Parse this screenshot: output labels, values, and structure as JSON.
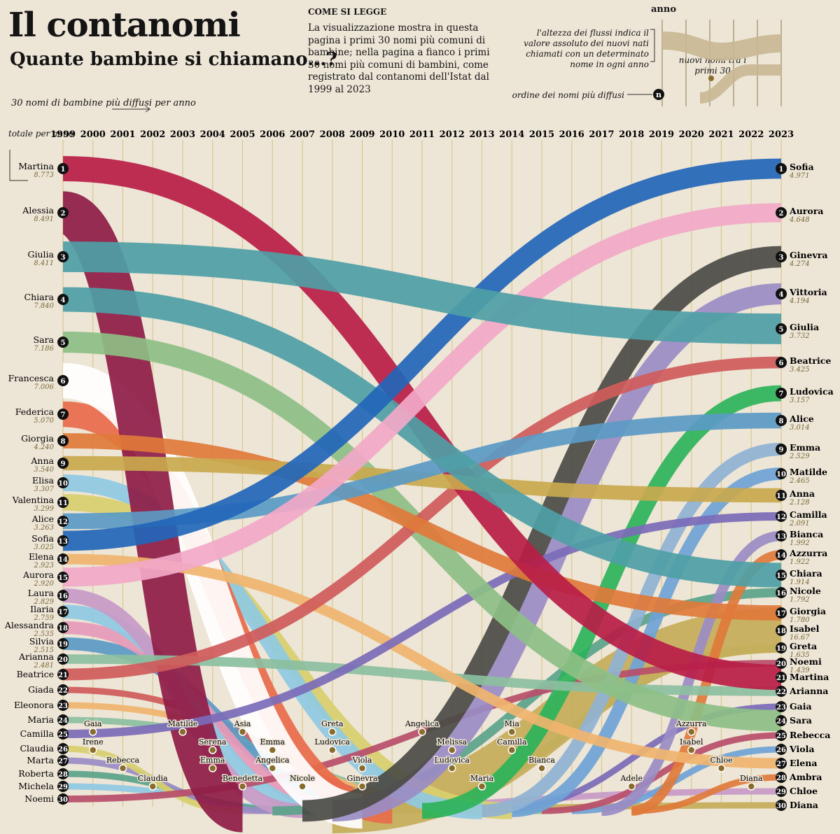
{
  "header": {
    "title": "Il contanomi",
    "subtitle": "Quante bambine si chiamano...?"
  },
  "how_to_read": {
    "heading": "COME SI LEGGE",
    "text": "La visualizzazione mostra in questa pagina i primi 30 nomi più comuni di bambine; nella pagina a fianco i primi 30 nomi più comuni di bambini, come registrato dal contanomi dell'Istat dal 1999 al 2023"
  },
  "legend": {
    "anno": "anno",
    "height": "l'altezza dei flussi indica il valore assoluto dei nuovi nati chiamati con un determinato nome in ogni anno",
    "new_names": "nuovi nomi tra i primi 30",
    "order": "ordine dei nomi più diffusi",
    "rank_symbol": "n"
  },
  "notes": {
    "names_per_year": "30 nomi di bambine più diffusi per anno",
    "total": "totale per anno"
  },
  "chart_data": {
    "type": "area",
    "chart_kind": "bump/stream chart",
    "years": [
      "1999",
      "2000",
      "2001",
      "2002",
      "2003",
      "2004",
      "2005",
      "2006",
      "2007",
      "2008",
      "2009",
      "2010",
      "2011",
      "2012",
      "2013",
      "2014",
      "2015",
      "2016",
      "2017",
      "2018",
      "2019",
      "2020",
      "2021",
      "2022",
      "2023"
    ],
    "ranks_1999": [
      {
        "rank": "1",
        "name": "Martina",
        "value": "8.773"
      },
      {
        "rank": "2",
        "name": "Alessia",
        "value": "8.491"
      },
      {
        "rank": "3",
        "name": "Giulia",
        "value": "8.411"
      },
      {
        "rank": "4",
        "name": "Chiara",
        "value": "7.840"
      },
      {
        "rank": "5",
        "name": "Sara",
        "value": "7.186"
      },
      {
        "rank": "6",
        "name": "Francesca",
        "value": "7.006"
      },
      {
        "rank": "7",
        "name": "Federica",
        "value": "5.070"
      },
      {
        "rank": "8",
        "name": "Giorgia",
        "value": "4.240"
      },
      {
        "rank": "9",
        "name": "Anna",
        "value": "3.540"
      },
      {
        "rank": "10",
        "name": "Elisa",
        "value": "3.307"
      },
      {
        "rank": "11",
        "name": "Valentina",
        "value": "3.299"
      },
      {
        "rank": "12",
        "name": "Alice",
        "value": "3.263"
      },
      {
        "rank": "13",
        "name": "Sofia",
        "value": "3.025"
      },
      {
        "rank": "14",
        "name": "Elena",
        "value": "2.923"
      },
      {
        "rank": "15",
        "name": "Aurora",
        "value": "2.920"
      },
      {
        "rank": "16",
        "name": "Laura",
        "value": "2.829"
      },
      {
        "rank": "17",
        "name": "Ilaria",
        "value": "2.759"
      },
      {
        "rank": "18",
        "name": "Alessandra",
        "value": "2.535"
      },
      {
        "rank": "19",
        "name": "Silvia",
        "value": "2.515"
      },
      {
        "rank": "20",
        "name": "Arianna",
        "value": "2.481"
      },
      {
        "rank": "21",
        "name": "Beatrice",
        "value": ""
      },
      {
        "rank": "22",
        "name": "Giada",
        "value": ""
      },
      {
        "rank": "23",
        "name": "Eleonora",
        "value": ""
      },
      {
        "rank": "24",
        "name": "Maria",
        "value": ""
      },
      {
        "rank": "25",
        "name": "Camilla",
        "value": ""
      },
      {
        "rank": "26",
        "name": "Claudia",
        "value": ""
      },
      {
        "rank": "27",
        "name": "Marta",
        "value": ""
      },
      {
        "rank": "28",
        "name": "Roberta",
        "value": ""
      },
      {
        "rank": "29",
        "name": "Michela",
        "value": ""
      },
      {
        "rank": "30",
        "name": "Noemi",
        "value": ""
      }
    ],
    "ranks_2023": [
      {
        "rank": "1",
        "name": "Sofia",
        "value": "4.971"
      },
      {
        "rank": "2",
        "name": "Aurora",
        "value": "4.648"
      },
      {
        "rank": "3",
        "name": "Ginevra",
        "value": "4.274"
      },
      {
        "rank": "4",
        "name": "Vittoria",
        "value": "4.194"
      },
      {
        "rank": "5",
        "name": "Giulia",
        "value": "3.732"
      },
      {
        "rank": "6",
        "name": "Beatrice",
        "value": "3.425"
      },
      {
        "rank": "7",
        "name": "Ludovica",
        "value": "3.157"
      },
      {
        "rank": "8",
        "name": "Alice",
        "value": "3.014"
      },
      {
        "rank": "9",
        "name": "Emma",
        "value": "2.529"
      },
      {
        "rank": "10",
        "name": "Matilde",
        "value": "2.465"
      },
      {
        "rank": "11",
        "name": "Anna",
        "value": "2.128"
      },
      {
        "rank": "12",
        "name": "Camilla",
        "value": "2.091"
      },
      {
        "rank": "13",
        "name": "Bianca",
        "value": "1.992"
      },
      {
        "rank": "14",
        "name": "Azzurra",
        "value": "1.922"
      },
      {
        "rank": "15",
        "name": "Chiara",
        "value": "1.914"
      },
      {
        "rank": "16",
        "name": "Nicole",
        "value": "1.792"
      },
      {
        "rank": "17",
        "name": "Giorgia",
        "value": "1.780"
      },
      {
        "rank": "18",
        "name": "Isabel",
        "value": "16.67"
      },
      {
        "rank": "19",
        "name": "Greta",
        "value": "1.635"
      },
      {
        "rank": "20",
        "name": "Noemi",
        "value": "1.439"
      },
      {
        "rank": "21",
        "name": "Martina",
        "value": ""
      },
      {
        "rank": "22",
        "name": "Arianna",
        "value": ""
      },
      {
        "rank": "23",
        "name": "Gaia",
        "value": ""
      },
      {
        "rank": "24",
        "name": "Sara",
        "value": ""
      },
      {
        "rank": "25",
        "name": "Rebecca",
        "value": ""
      },
      {
        "rank": "26",
        "name": "Viola",
        "value": ""
      },
      {
        "rank": "27",
        "name": "Elena",
        "value": ""
      },
      {
        "rank": "28",
        "name": "Ambra",
        "value": ""
      },
      {
        "rank": "29",
        "name": "Chloe",
        "value": ""
      },
      {
        "rank": "30",
        "name": "Diana",
        "value": ""
      }
    ],
    "new_entries": [
      {
        "name": "Gaia",
        "year": "2000"
      },
      {
        "name": "Irene",
        "year": "2000"
      },
      {
        "name": "Rebecca",
        "year": "2001"
      },
      {
        "name": "Claudia",
        "year": "2002"
      },
      {
        "name": "Matilde",
        "year": "2003"
      },
      {
        "name": "Serena",
        "year": "2004"
      },
      {
        "name": "Emma",
        "year": "2004"
      },
      {
        "name": "Benedetta",
        "year": "2005"
      },
      {
        "name": "Asia",
        "year": "2005"
      },
      {
        "name": "Emma",
        "year": "2006"
      },
      {
        "name": "Angelica",
        "year": "2006"
      },
      {
        "name": "Nicole",
        "year": "2007"
      },
      {
        "name": "Greta",
        "year": "2008"
      },
      {
        "name": "Ludovica",
        "year": "2008"
      },
      {
        "name": "Viola",
        "year": "2009"
      },
      {
        "name": "Ginevra",
        "year": "2009"
      },
      {
        "name": "Angelica",
        "year": "2011"
      },
      {
        "name": "Melissa",
        "year": "2012"
      },
      {
        "name": "Ludovica",
        "year": "2012"
      },
      {
        "name": "Maria",
        "year": "2013"
      },
      {
        "name": "Mia",
        "year": "2014"
      },
      {
        "name": "Camilla",
        "year": "2014"
      },
      {
        "name": "Bianca",
        "year": "2015"
      },
      {
        "name": "Adele",
        "year": "2018"
      },
      {
        "name": "Azzurra",
        "year": "2020"
      },
      {
        "name": "Isabel",
        "year": "2020"
      },
      {
        "name": "Chloe",
        "year": "2021"
      },
      {
        "name": "Diana",
        "year": "2022"
      }
    ],
    "colors": {
      "background": "#ede5d6",
      "sofia": "#2266b8",
      "martina": "#b81d47",
      "alessia": "#8e1c46",
      "giulia": "#4e9fa6",
      "chiara": "#4e9fa6",
      "sara": "#8dbf85",
      "aurora": "#f2a8c8",
      "ginevra": "#4b4b45",
      "vittoria": "#9a8cc4",
      "ludovica": "#2db35a",
      "emma": "#8fb2d2",
      "federica": "#e86b4b",
      "giorgia": "#e07a3a",
      "anna": "#c9a94e",
      "elisa": "#8fc9e2",
      "sample_strand": "#c8b793",
      "marker": "#8a6c2d",
      "rank_badge": "#111111"
    }
  }
}
